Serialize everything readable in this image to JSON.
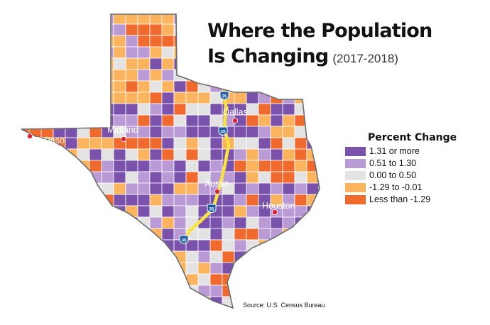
{
  "title": {
    "line1": "Where the Population",
    "line2": "Is Changing",
    "subtitle": "(2017-2018)"
  },
  "legend": {
    "title": "Percent Change",
    "items": [
      {
        "label": "1.31 or more",
        "color": "#7b52ab"
      },
      {
        "label": "0.51 to 1.30",
        "color": "#b99ad4"
      },
      {
        "label": "0.00 to 0.50",
        "color": "#e3e3e3"
      },
      {
        "label": "-1.29 to -0.01",
        "color": "#fbb35d"
      },
      {
        "label": "Less than -1.29",
        "color": "#ef6a2c"
      }
    ]
  },
  "cities": {
    "el_paso": "El Paso",
    "midland": "Midland",
    "dallas": "Dallas",
    "austin": "Austin",
    "houston": "Houston"
  },
  "highway": {
    "shield": "35"
  },
  "source": "Source: U.S. Census Bureau",
  "colors": {
    "outline": "#6d6d6d",
    "highway": "#f7e443",
    "city_dot": "#e02030",
    "shield": "#1a5aa0"
  }
}
